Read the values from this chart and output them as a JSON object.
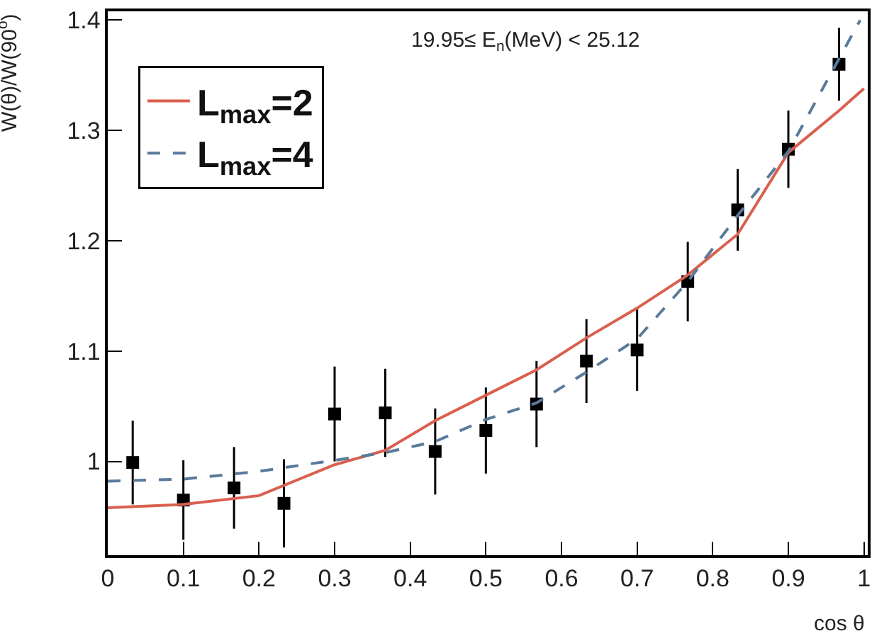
{
  "chart_data": {
    "type": "scatter",
    "xlabel": "cos θ",
    "ylabel": "W(θ)/W(90$^{o}$)",
    "annotations": [
      "19.95≤ E$_{n}$(MeV) < 25.12"
    ],
    "xlim": [
      0,
      1.005
    ],
    "xticks": [
      0,
      0.1,
      0.2,
      0.3,
      0.4,
      0.5,
      0.6,
      0.7,
      0.8,
      0.9,
      1
    ],
    "ylim": [
      0.915,
      1.408
    ],
    "yticks": [
      1,
      1.1,
      1.2,
      1.3,
      1.4
    ],
    "grid": false,
    "legend": "top left",
    "marker": "square",
    "series": [
      {
        "color": "#000000",
        "x": [
          0.033,
          0.1,
          0.167,
          0.233,
          0.3,
          0.367,
          0.433,
          0.5,
          0.567,
          0.633,
          0.7,
          0.767,
          0.833,
          0.9,
          0.967
        ],
        "values": [
          0.999,
          0.965,
          0.976,
          0.962,
          1.043,
          1.044,
          1.009,
          1.028,
          1.052,
          1.091,
          1.101,
          1.163,
          1.228,
          1.283,
          1.36
        ],
        "errors": [
          0.038,
          0.036,
          0.037,
          0.04,
          0.043,
          0.04,
          0.039,
          0.039,
          0.039,
          0.038,
          0.037,
          0.036,
          0.037,
          0.035,
          0.033
        ]
      },
      {
        "type": "line",
        "name": "L$_{max}$=2",
        "color": "#d9604f",
        "line_style": "solid",
        "marker": "none",
        "x": [
          0,
          0.1,
          0.2,
          0.3,
          0.367,
          0.433,
          0.5,
          0.567,
          0.633,
          0.7,
          0.767,
          0.833,
          0.9,
          0.967,
          1
        ],
        "values": [
          0.958,
          0.961,
          0.969,
          0.997,
          1.01,
          1.037,
          1.06,
          1.083,
          1.112,
          1.139,
          1.169,
          1.206,
          1.28,
          1.318,
          1.338
        ]
      },
      {
        "type": "line",
        "name": "L$_{max}$=4",
        "color": "#5a7a9a",
        "line_style": "dashed",
        "marker": "none",
        "x": [
          0,
          0.1,
          0.2,
          0.3,
          0.367,
          0.433,
          0.5,
          0.567,
          0.633,
          0.7,
          0.767,
          0.833,
          0.9,
          0.967,
          0.995
        ],
        "values": [
          0.982,
          0.984,
          0.991,
          1.001,
          1.008,
          1.018,
          1.038,
          1.053,
          1.081,
          1.111,
          1.163,
          1.223,
          1.281,
          1.365,
          1.4
        ]
      }
    ]
  }
}
